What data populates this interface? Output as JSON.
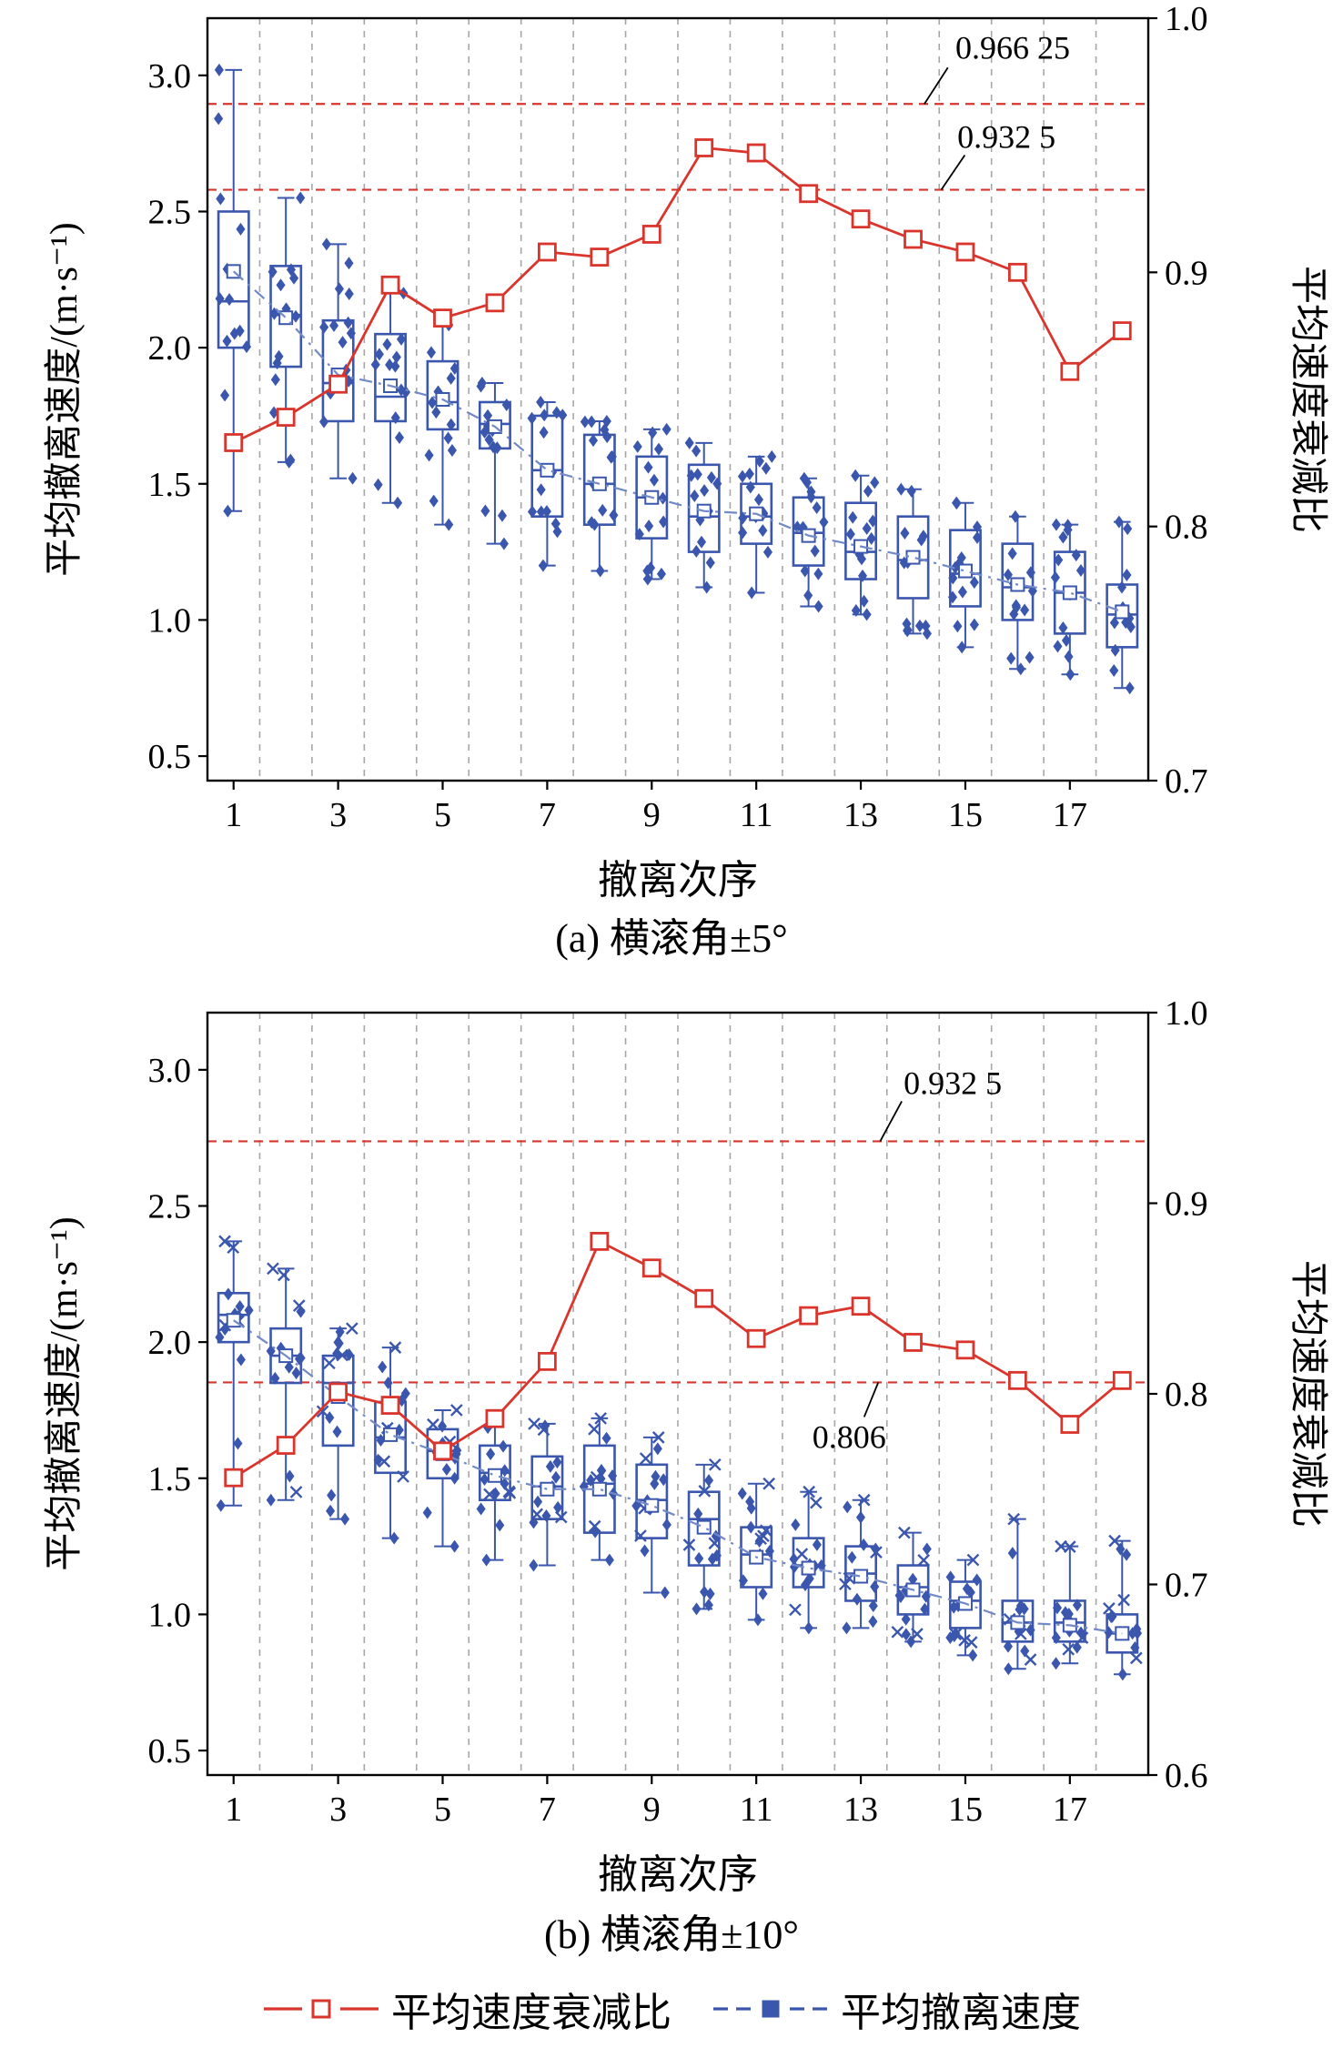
{
  "page": {
    "background": "#ffffff"
  },
  "colors": {
    "decay": "#d9352c",
    "speed": "#3a56ad",
    "trend": "#7289c8",
    "grid": "#a6a6a6",
    "axis": "#000000",
    "threshold": "#d9352c"
  },
  "legend": [
    {
      "label": "平均速度衰减比",
      "marker": "open-square",
      "line": "solid",
      "color": "#d9352c"
    },
    {
      "label": "平均撤离速度",
      "marker": "filled-square",
      "line": "dashed",
      "color": "#3a56ad"
    }
  ],
  "chart_data": [
    {
      "type": "box+line",
      "panel_label": "(a) 横滚角±5°",
      "xlabel": "撤离次序",
      "ylabel_left": "平均撤离速度/(m·s⁻¹)",
      "ylabel_right": "平均速度衰减比",
      "x": [
        1,
        2,
        3,
        4,
        5,
        6,
        7,
        8,
        9,
        10,
        11,
        12,
        13,
        14,
        15,
        16,
        17,
        18
      ],
      "x_ticks": [
        1,
        3,
        5,
        7,
        9,
        11,
        13,
        15,
        17
      ],
      "ylim_left": [
        0.41,
        3.21
      ],
      "yticks_left": [
        0.5,
        1.0,
        1.5,
        2.0,
        2.5,
        3.0
      ],
      "ylim_right": [
        0.7,
        1.0
      ],
      "yticks_right": [
        0.7,
        0.8,
        0.9,
        1.0
      ],
      "grid": "vertical-dashed",
      "scatter_markers": [
        "diamond"
      ],
      "thresholds": [
        {
          "value": 0.96625,
          "label": "0.966 25",
          "ann": {
            "x1f": 0.762,
            "x2f": 0.787,
            "dy2": -40,
            "tf": 0.795,
            "tdy": -50,
            "anchor": "start"
          }
        },
        {
          "value": 0.9325,
          "label": "0.932 5",
          "ann": {
            "x1f": 0.78,
            "x2f": 0.805,
            "dy2": -38,
            "tf": 0.797,
            "tdy": -46,
            "anchor": "start"
          }
        }
      ],
      "box_stats_order": [
        "q1",
        "median",
        "q3",
        "min",
        "max",
        "mean"
      ],
      "series": [
        {
          "name": "平均速度衰减比",
          "type": "line",
          "axis": "right",
          "values": [
            0.833,
            0.843,
            0.856,
            0.895,
            0.882,
            0.888,
            0.908,
            0.906,
            0.915,
            0.949,
            0.947,
            0.931,
            0.921,
            0.913,
            0.908,
            0.9,
            0.861,
            0.877
          ]
        },
        {
          "name": "平均撤离速度",
          "type": "box",
          "axis": "left",
          "boxes": [
            [
              2.0,
              2.17,
              2.5,
              1.4,
              3.02,
              2.28
            ],
            [
              1.93,
              2.12,
              2.3,
              1.58,
              2.55,
              2.11
            ],
            [
              1.73,
              1.87,
              2.1,
              1.52,
              2.38,
              1.9
            ],
            [
              1.73,
              1.82,
              2.05,
              1.43,
              2.2,
              1.86
            ],
            [
              1.7,
              1.8,
              1.95,
              1.35,
              2.1,
              1.81
            ],
            [
              1.63,
              1.72,
              1.8,
              1.28,
              1.87,
              1.71
            ],
            [
              1.38,
              1.55,
              1.75,
              1.2,
              1.8,
              1.55
            ],
            [
              1.35,
              1.5,
              1.68,
              1.18,
              1.73,
              1.5
            ],
            [
              1.3,
              1.45,
              1.6,
              1.15,
              1.7,
              1.45
            ],
            [
              1.25,
              1.38,
              1.57,
              1.12,
              1.65,
              1.4
            ],
            [
              1.28,
              1.38,
              1.5,
              1.1,
              1.6,
              1.39
            ],
            [
              1.2,
              1.32,
              1.45,
              1.05,
              1.52,
              1.31
            ],
            [
              1.15,
              1.25,
              1.43,
              1.02,
              1.53,
              1.27
            ],
            [
              1.08,
              1.22,
              1.38,
              0.95,
              1.48,
              1.23
            ],
            [
              1.05,
              1.17,
              1.33,
              0.9,
              1.43,
              1.18
            ],
            [
              1.0,
              1.12,
              1.28,
              0.82,
              1.38,
              1.13
            ],
            [
              0.95,
              1.1,
              1.25,
              0.8,
              1.35,
              1.1
            ],
            [
              0.9,
              1.02,
              1.13,
              0.75,
              1.36,
              1.03
            ]
          ]
        }
      ]
    },
    {
      "type": "box+line",
      "panel_label": "(b) 横滚角±10°",
      "xlabel": "撤离次序",
      "ylabel_left": "平均撤离速度/(m·s⁻¹)",
      "ylabel_right": "平均速度衰减比",
      "x": [
        1,
        2,
        3,
        4,
        5,
        6,
        7,
        8,
        9,
        10,
        11,
        12,
        13,
        14,
        15,
        16,
        17,
        18
      ],
      "x_ticks": [
        1,
        3,
        5,
        7,
        9,
        11,
        13,
        15,
        17
      ],
      "ylim_left": [
        0.41,
        3.21
      ],
      "yticks_left": [
        0.5,
        1.0,
        1.5,
        2.0,
        2.5,
        3.0
      ],
      "ylim_right": [
        0.6,
        1.0
      ],
      "yticks_right": [
        0.6,
        0.7,
        0.8,
        0.9,
        1.0
      ],
      "grid": "vertical-dashed",
      "scatter_markers": [
        "diamond",
        "x"
      ],
      "thresholds": [
        {
          "value": 0.9325,
          "label": "0.932 5",
          "ann": {
            "x1f": 0.715,
            "x2f": 0.738,
            "dy2": -44,
            "tf": 0.74,
            "tdy": -52,
            "anchor": "start"
          }
        },
        {
          "value": 0.806,
          "label": "0.806",
          "ann": {
            "x1f": 0.713,
            "x2f": 0.698,
            "dy2": 38,
            "tf": 0.682,
            "tdy": 72,
            "anchor": "middle"
          }
        }
      ],
      "box_stats_order": [
        "q1",
        "median",
        "q3",
        "min",
        "max",
        "mean"
      ],
      "series": [
        {
          "name": "平均速度衰减比",
          "type": "line",
          "axis": "right",
          "values": [
            0.756,
            0.773,
            0.801,
            0.794,
            0.77,
            0.787,
            0.817,
            0.88,
            0.866,
            0.85,
            0.829,
            0.841,
            0.846,
            0.827,
            0.823,
            0.807,
            0.784,
            0.807
          ]
        },
        {
          "name": "平均撤离速度",
          "type": "box",
          "axis": "left",
          "boxes": [
            [
              2.0,
              2.1,
              2.18,
              1.4,
              2.37,
              2.08
            ],
            [
              1.85,
              1.95,
              2.05,
              1.42,
              2.27,
              1.95
            ],
            [
              1.62,
              1.85,
              1.95,
              1.35,
              2.05,
              1.8
            ],
            [
              1.52,
              1.65,
              1.78,
              1.28,
              1.98,
              1.66
            ],
            [
              1.5,
              1.6,
              1.68,
              1.25,
              1.75,
              1.59
            ],
            [
              1.42,
              1.52,
              1.62,
              1.2,
              1.72,
              1.51
            ],
            [
              1.35,
              1.47,
              1.58,
              1.18,
              1.7,
              1.46
            ],
            [
              1.3,
              1.48,
              1.62,
              1.2,
              1.72,
              1.46
            ],
            [
              1.28,
              1.42,
              1.55,
              1.08,
              1.65,
              1.4
            ],
            [
              1.18,
              1.35,
              1.45,
              1.02,
              1.55,
              1.32
            ],
            [
              1.1,
              1.22,
              1.32,
              0.98,
              1.48,
              1.21
            ],
            [
              1.1,
              1.18,
              1.28,
              0.95,
              1.45,
              1.17
            ],
            [
              1.05,
              1.15,
              1.25,
              0.95,
              1.42,
              1.14
            ],
            [
              1.0,
              1.1,
              1.18,
              0.9,
              1.3,
              1.09
            ],
            [
              0.95,
              1.05,
              1.12,
              0.85,
              1.2,
              1.04
            ],
            [
              0.9,
              0.97,
              1.05,
              0.8,
              1.35,
              0.97
            ],
            [
              0.9,
              0.97,
              1.05,
              0.82,
              1.25,
              0.96
            ],
            [
              0.86,
              0.93,
              1.0,
              0.78,
              1.27,
              0.93
            ]
          ]
        }
      ]
    }
  ]
}
